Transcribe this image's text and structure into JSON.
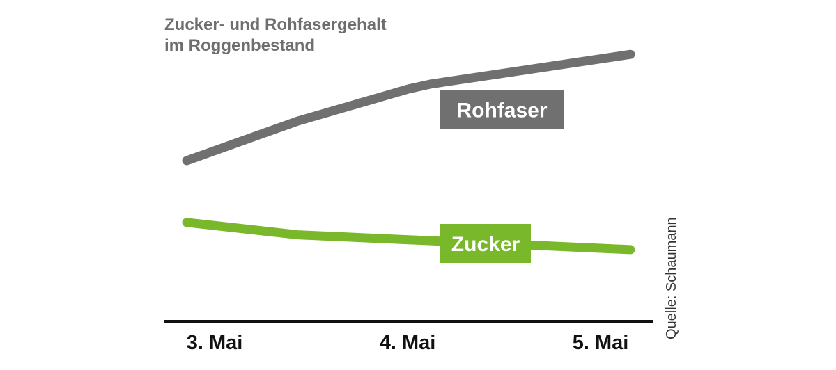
{
  "title": [
    "Zucker- und Rohfasergehalt",
    "im Roggenbestand"
  ],
  "source": "Quelle: Schaumann",
  "colors": {
    "rohfaser": "#707070",
    "zucker": "#78b82a",
    "title": "#6e6e6e",
    "axis": "#111111"
  },
  "chart_data": {
    "type": "line",
    "title": "Zucker- und Rohfasergehalt im Roggenbestand",
    "xlabel": "",
    "ylabel": "",
    "categories": [
      "3. Mai",
      "4. Mai",
      "5. Mai"
    ],
    "x": [
      0,
      0.5,
      1,
      1.1,
      2
    ],
    "series": [
      {
        "name": "Rohfaser",
        "color": "#707070",
        "x": [
          0,
          0.5,
          1,
          1.1,
          2
        ],
        "values": [
          65,
          81,
          94,
          96,
          108
        ]
      },
      {
        "name": "Zucker",
        "color": "#78b82a",
        "x": [
          0,
          0.5,
          1,
          2
        ],
        "values": [
          40,
          35,
          33,
          29
        ]
      }
    ],
    "ylim": [
      0,
      130
    ],
    "grid": false,
    "legend": "none"
  }
}
